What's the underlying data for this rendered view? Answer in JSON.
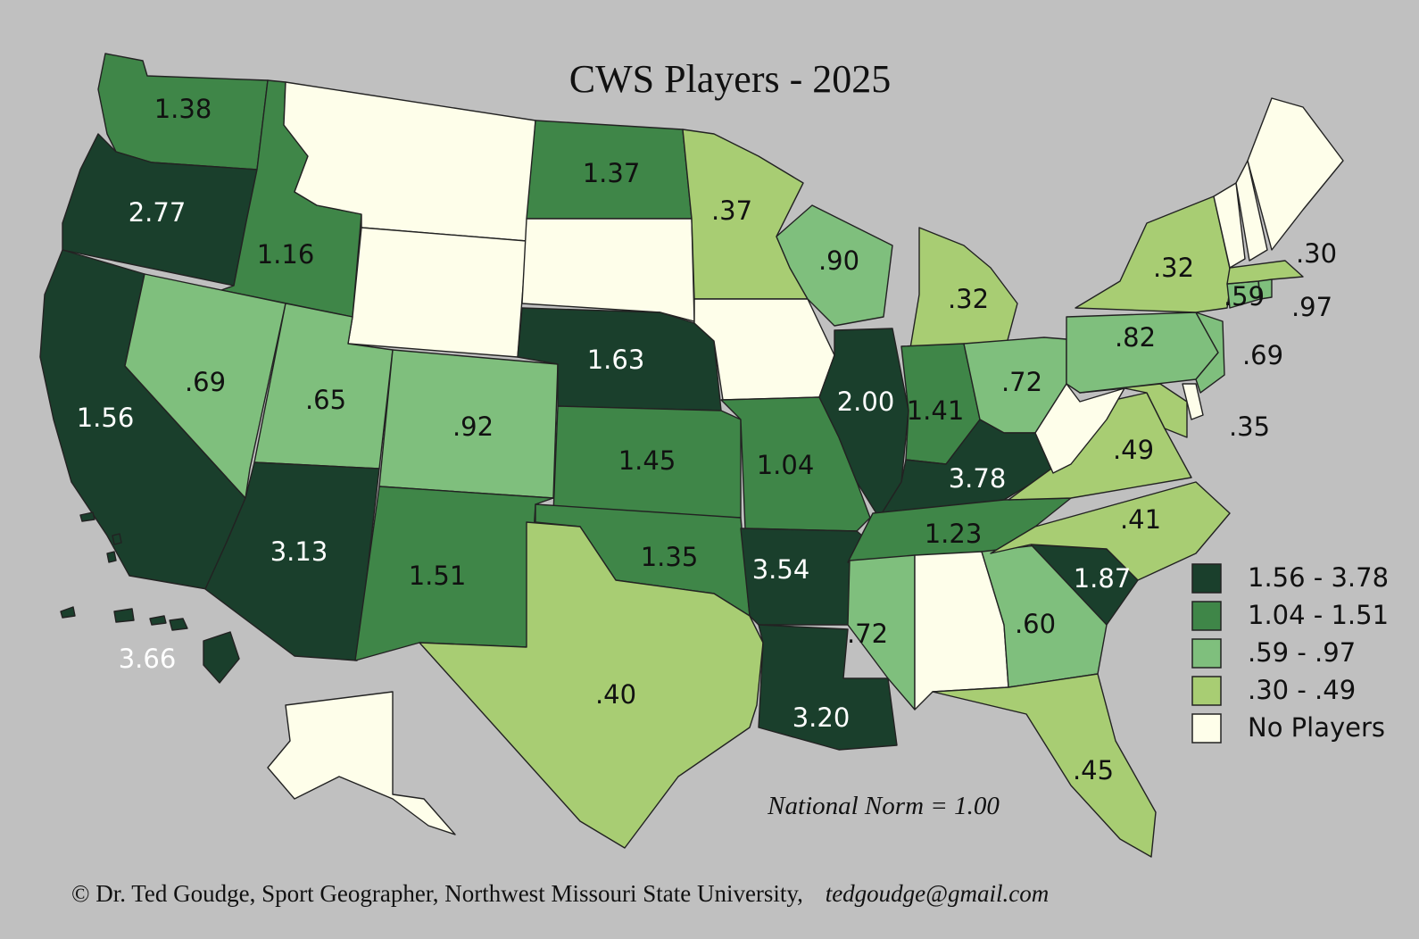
{
  "title": "CWS Players - 2025",
  "national_norm": "National Norm = 1.00",
  "credit": {
    "text": "© Dr. Ted Goudge, Sport Geographer, Northwest Missouri State University,",
    "email": "tedgoudge@gmail.com"
  },
  "legend": [
    {
      "label": "1.56 - 3.78",
      "color": "#1a3f2c"
    },
    {
      "label": "1.04 - 1.51",
      "color": "#3f8648"
    },
    {
      "label": ".59 - .97",
      "color": "#7fbf7d"
    },
    {
      "label": ".30 - .49",
      "color": "#a8cd73"
    },
    {
      "label": "No Players",
      "color": "#fefeea"
    }
  ],
  "states": [
    {
      "id": "WA",
      "value": "1.38",
      "cls": 1
    },
    {
      "id": "OR",
      "value": "2.77",
      "cls": 0
    },
    {
      "id": "CA",
      "value": "1.56",
      "cls": 0
    },
    {
      "id": "ID",
      "value": "1.16",
      "cls": 1
    },
    {
      "id": "NV",
      "value": ".69",
      "cls": 2
    },
    {
      "id": "MT",
      "value": "",
      "cls": 4
    },
    {
      "id": "WY",
      "value": "",
      "cls": 4
    },
    {
      "id": "UT",
      "value": ".65",
      "cls": 2
    },
    {
      "id": "AZ",
      "value": "3.13",
      "cls": 0
    },
    {
      "id": "CO",
      "value": ".92",
      "cls": 2
    },
    {
      "id": "NM",
      "value": "1.51",
      "cls": 1
    },
    {
      "id": "ND",
      "value": "1.37",
      "cls": 1
    },
    {
      "id": "SD",
      "value": "",
      "cls": 4
    },
    {
      "id": "NE",
      "value": "1.63",
      "cls": 0
    },
    {
      "id": "KS",
      "value": "1.45",
      "cls": 1
    },
    {
      "id": "OK",
      "value": "1.35",
      "cls": 1
    },
    {
      "id": "TX",
      "value": ".40",
      "cls": 3
    },
    {
      "id": "MN",
      "value": ".37",
      "cls": 3
    },
    {
      "id": "IA",
      "value": "",
      "cls": 4
    },
    {
      "id": "MO",
      "value": "1.04",
      "cls": 1
    },
    {
      "id": "AR",
      "value": "3.54",
      "cls": 0
    },
    {
      "id": "LA",
      "value": "3.20",
      "cls": 0
    },
    {
      "id": "WI",
      "value": ".90",
      "cls": 2
    },
    {
      "id": "IL",
      "value": "2.00",
      "cls": 0
    },
    {
      "id": "MI",
      "value": ".32",
      "cls": 3
    },
    {
      "id": "IN",
      "value": "1.41",
      "cls": 1
    },
    {
      "id": "OH",
      "value": ".72",
      "cls": 2
    },
    {
      "id": "KY",
      "value": "3.78",
      "cls": 0
    },
    {
      "id": "TN",
      "value": "1.23",
      "cls": 1
    },
    {
      "id": "MS",
      "value": ".72",
      "cls": 2
    },
    {
      "id": "AL",
      "value": "",
      "cls": 4
    },
    {
      "id": "GA",
      "value": ".60",
      "cls": 2
    },
    {
      "id": "FL",
      "value": ".45",
      "cls": 3
    },
    {
      "id": "SC",
      "value": "1.87",
      "cls": 0
    },
    {
      "id": "NC",
      "value": ".41",
      "cls": 3
    },
    {
      "id": "VA",
      "value": ".49",
      "cls": 3
    },
    {
      "id": "WV",
      "value": "",
      "cls": 4
    },
    {
      "id": "MD",
      "value": ".35",
      "cls": 3
    },
    {
      "id": "DE",
      "value": "",
      "cls": 4
    },
    {
      "id": "PA",
      "value": ".82",
      "cls": 2
    },
    {
      "id": "NJ",
      "value": ".69",
      "cls": 2
    },
    {
      "id": "NY",
      "value": ".32",
      "cls": 3
    },
    {
      "id": "CT",
      "value": ".59",
      "cls": 2
    },
    {
      "id": "RI",
      "value": ".97",
      "cls": 2
    },
    {
      "id": "MA",
      "value": ".30",
      "cls": 3
    },
    {
      "id": "VT",
      "value": "",
      "cls": 4
    },
    {
      "id": "NH",
      "value": "",
      "cls": 4
    },
    {
      "id": "ME",
      "value": "",
      "cls": 4
    },
    {
      "id": "AK",
      "value": "",
      "cls": 4
    },
    {
      "id": "HI",
      "value": "3.66",
      "cls": 0
    }
  ]
}
